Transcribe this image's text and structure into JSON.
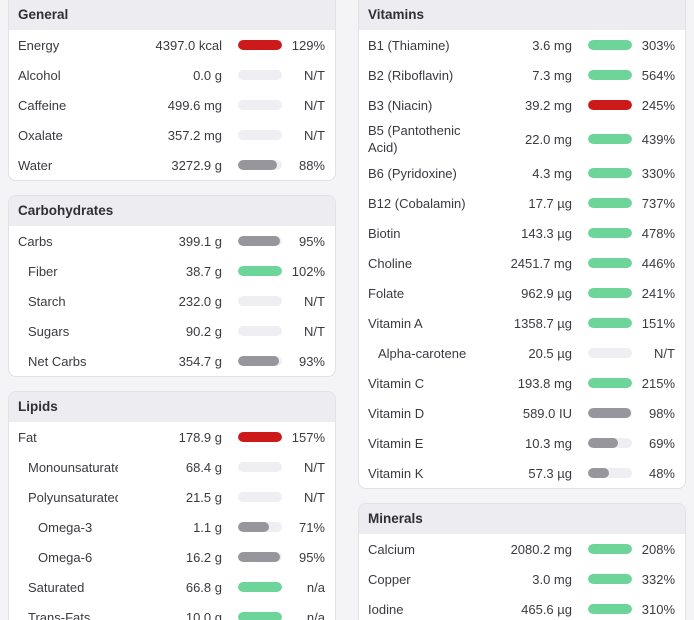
{
  "colors": {
    "good": "#6dd49a",
    "over": "#cc1a1a",
    "partial": "#96969c",
    "track": "#efeff3"
  },
  "sections": {
    "general": {
      "title": "General",
      "rows": [
        {
          "label": "Energy",
          "amount": "4397.0 kcal",
          "pct": "129%",
          "fill": 1.0,
          "status": "over"
        },
        {
          "label": "Alcohol",
          "amount": "0.0 g",
          "pct": "N/T",
          "fill": 0,
          "status": "none"
        },
        {
          "label": "Caffeine",
          "amount": "499.6 mg",
          "pct": "N/T",
          "fill": 0,
          "status": "none"
        },
        {
          "label": "Oxalate",
          "amount": "357.2 mg",
          "pct": "N/T",
          "fill": 0,
          "status": "none"
        },
        {
          "label": "Water",
          "amount": "3272.9 g",
          "pct": "88%",
          "fill": 0.88,
          "status": "partial"
        }
      ]
    },
    "carbohydrates": {
      "title": "Carbohydrates",
      "rows": [
        {
          "label": "Carbs",
          "amount": "399.1 g",
          "pct": "95%",
          "fill": 0.95,
          "status": "partial",
          "indent": 0
        },
        {
          "label": "Fiber",
          "amount": "38.7 g",
          "pct": "102%",
          "fill": 1.0,
          "status": "good",
          "indent": 1
        },
        {
          "label": "Starch",
          "amount": "232.0 g",
          "pct": "N/T",
          "fill": 0,
          "status": "none",
          "indent": 1
        },
        {
          "label": "Sugars",
          "amount": "90.2 g",
          "pct": "N/T",
          "fill": 0,
          "status": "none",
          "indent": 1
        },
        {
          "label": "Net Carbs",
          "amount": "354.7 g",
          "pct": "93%",
          "fill": 0.93,
          "status": "partial",
          "indent": 1
        }
      ]
    },
    "lipids": {
      "title": "Lipids",
      "rows": [
        {
          "label": "Fat",
          "amount": "178.9 g",
          "pct": "157%",
          "fill": 1.0,
          "status": "over",
          "indent": 0
        },
        {
          "label": "Monounsaturated",
          "amount": "68.4 g",
          "pct": "N/T",
          "fill": 0,
          "status": "none",
          "indent": 1
        },
        {
          "label": "Polyunsaturated",
          "amount": "21.5 g",
          "pct": "N/T",
          "fill": 0,
          "status": "none",
          "indent": 1
        },
        {
          "label": "Omega-3",
          "amount": "1.1 g",
          "pct": "71%",
          "fill": 0.71,
          "status": "partial",
          "indent": 2
        },
        {
          "label": "Omega-6",
          "amount": "16.2 g",
          "pct": "95%",
          "fill": 0.95,
          "status": "partial",
          "indent": 2
        },
        {
          "label": "Saturated",
          "amount": "66.8 g",
          "pct": "n/a",
          "fill": 1.0,
          "status": "good",
          "indent": 1
        },
        {
          "label": "Trans-Fats",
          "amount": "10.0 g",
          "pct": "n/a",
          "fill": 1.0,
          "status": "good",
          "indent": 1
        }
      ]
    },
    "vitamins": {
      "title": "Vitamins",
      "rows": [
        {
          "label": "B1 (Thiamine)",
          "amount": "3.6 mg",
          "pct": "303%",
          "fill": 1.0,
          "status": "good"
        },
        {
          "label": "B2 (Riboflavin)",
          "amount": "7.3 mg",
          "pct": "564%",
          "fill": 1.0,
          "status": "good"
        },
        {
          "label": "B3 (Niacin)",
          "amount": "39.2 mg",
          "pct": "245%",
          "fill": 1.0,
          "status": "over"
        },
        {
          "label": "B5 (Pantothenic Acid)",
          "amount": "22.0 mg",
          "pct": "439%",
          "fill": 1.0,
          "status": "good",
          "tall": true
        },
        {
          "label": "B6 (Pyridoxine)",
          "amount": "4.3 mg",
          "pct": "330%",
          "fill": 1.0,
          "status": "good"
        },
        {
          "label": "B12 (Cobalamin)",
          "amount": "17.7 µg",
          "pct": "737%",
          "fill": 1.0,
          "status": "good"
        },
        {
          "label": "Biotin",
          "amount": "143.3 µg",
          "pct": "478%",
          "fill": 1.0,
          "status": "good"
        },
        {
          "label": "Choline",
          "amount": "2451.7 mg",
          "pct": "446%",
          "fill": 1.0,
          "status": "good"
        },
        {
          "label": "Folate",
          "amount": "962.9 µg",
          "pct": "241%",
          "fill": 1.0,
          "status": "good"
        },
        {
          "label": "Vitamin A",
          "amount": "1358.7 µg",
          "pct": "151%",
          "fill": 1.0,
          "status": "good"
        },
        {
          "label": "Alpha-carotene",
          "amount": "20.5 µg",
          "pct": "N/T",
          "fill": 0,
          "status": "none",
          "indent": 1
        },
        {
          "label": "Vitamin C",
          "amount": "193.8 mg",
          "pct": "215%",
          "fill": 1.0,
          "status": "good"
        },
        {
          "label": "Vitamin D",
          "amount": "589.0 IU",
          "pct": "98%",
          "fill": 0.98,
          "status": "partial"
        },
        {
          "label": "Vitamin E",
          "amount": "10.3 mg",
          "pct": "69%",
          "fill": 0.69,
          "status": "partial"
        },
        {
          "label": "Vitamin K",
          "amount": "57.3 µg",
          "pct": "48%",
          "fill": 0.48,
          "status": "partial"
        }
      ]
    },
    "minerals": {
      "title": "Minerals",
      "rows": [
        {
          "label": "Calcium",
          "amount": "2080.2 mg",
          "pct": "208%",
          "fill": 1.0,
          "status": "good"
        },
        {
          "label": "Copper",
          "amount": "3.0 mg",
          "pct": "332%",
          "fill": 1.0,
          "status": "good"
        },
        {
          "label": "Iodine",
          "amount": "465.6 µg",
          "pct": "310%",
          "fill": 1.0,
          "status": "good"
        }
      ]
    }
  }
}
